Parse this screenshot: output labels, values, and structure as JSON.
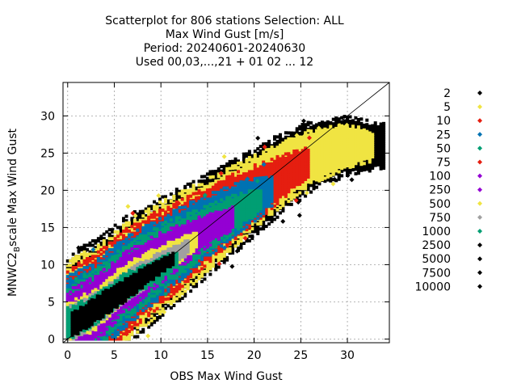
{
  "chart_data": {
    "type": "scatter",
    "title_lines": [
      "Scatterplot for  806 stations Selection: ALL",
      "Max Wind Gust [m/s]",
      "Period: 20240601-20240630",
      "Used 00,03,...,21 + 01 02 ... 12"
    ],
    "xlabel": "OBS Max Wind Gust",
    "ylabel_main": "MNWC2",
    "ylabel_sub": "B",
    "ylabel_tail": "scale Max Wind Gust",
    "xlim": [
      -0.5,
      34.5
    ],
    "ylim": [
      -0.5,
      34.5
    ],
    "xticks": [
      0,
      5,
      10,
      15,
      20,
      25,
      30
    ],
    "yticks": [
      0,
      5,
      10,
      15,
      20,
      25,
      30
    ],
    "grid": true,
    "legend_position": "right",
    "diagonal_line": true,
    "density_levels": [
      {
        "label": "2",
        "color": "#000000"
      },
      {
        "label": "5",
        "color": "#f0e442"
      },
      {
        "label": "10",
        "color": "#e51e10"
      },
      {
        "label": "25",
        "color": "#0072b2"
      },
      {
        "label": "50",
        "color": "#009e73"
      },
      {
        "label": "75",
        "color": "#e51e10"
      },
      {
        "label": "100",
        "color": "#9400d3"
      },
      {
        "label": "250",
        "color": "#9400d3"
      },
      {
        "label": "500",
        "color": "#f0e442"
      },
      {
        "label": "750",
        "color": "#a0a0a0"
      },
      {
        "label": "1000",
        "color": "#009e73"
      },
      {
        "label": "2500",
        "color": "#000000"
      },
      {
        "label": "5000",
        "color": "#000000"
      },
      {
        "label": "7500",
        "color": "#000000"
      },
      {
        "label": "10000",
        "color": "#000000"
      }
    ],
    "density_bands": [
      {
        "level": "2",
        "color": "#000000",
        "ridge": [
          [
            0,
            1.5
          ],
          [
            3,
            4
          ],
          [
            6,
            7.5
          ],
          [
            10,
            11
          ],
          [
            14,
            14.5
          ],
          [
            18,
            18
          ],
          [
            22,
            21.5
          ],
          [
            26,
            24.5
          ],
          [
            30,
            26
          ],
          [
            34,
            26
          ]
        ],
        "halfwidth": [
          [
            0,
            10
          ],
          [
            10,
            8
          ],
          [
            20,
            6
          ],
          [
            30,
            4
          ],
          [
            34,
            3
          ]
        ],
        "scatter": 40
      },
      {
        "level": "5",
        "color": "#f0e442",
        "ridge": [
          [
            0,
            1.5
          ],
          [
            3,
            4
          ],
          [
            6,
            7.5
          ],
          [
            10,
            11
          ],
          [
            14,
            14.5
          ],
          [
            18,
            18
          ],
          [
            22,
            21.5
          ],
          [
            26,
            24.5
          ],
          [
            30,
            26
          ],
          [
            33,
            26
          ]
        ],
        "halfwidth": [
          [
            0,
            9
          ],
          [
            10,
            7.5
          ],
          [
            20,
            5
          ],
          [
            30,
            3
          ],
          [
            33,
            2
          ]
        ],
        "scatter": 30
      },
      {
        "level": "10",
        "color": "#e51e10",
        "ridge": [
          [
            0,
            1.5
          ],
          [
            3,
            4
          ],
          [
            6,
            7.5
          ],
          [
            10,
            11
          ],
          [
            14,
            14.5
          ],
          [
            18,
            18
          ],
          [
            22,
            21
          ],
          [
            26,
            24
          ]
        ],
        "halfwidth": [
          [
            0,
            8
          ],
          [
            10,
            6.5
          ],
          [
            20,
            4
          ],
          [
            26,
            2
          ]
        ],
        "scatter": 20
      },
      {
        "level": "25",
        "color": "#0072b2",
        "ridge": [
          [
            0,
            1.5
          ],
          [
            3,
            4
          ],
          [
            6,
            7.5
          ],
          [
            10,
            11
          ],
          [
            14,
            14.5
          ],
          [
            18,
            17.5
          ],
          [
            22,
            20
          ]
        ],
        "halfwidth": [
          [
            0,
            7
          ],
          [
            10,
            5.5
          ],
          [
            20,
            3
          ],
          [
            22,
            2
          ]
        ],
        "scatter": 10
      },
      {
        "level": "50",
        "color": "#009e73",
        "ridge": [
          [
            0,
            1.5
          ],
          [
            3,
            4
          ],
          [
            6,
            7.5
          ],
          [
            10,
            11
          ],
          [
            14,
            14
          ],
          [
            18,
            17
          ],
          [
            21,
            19
          ]
        ],
        "halfwidth": [
          [
            0,
            6
          ],
          [
            10,
            4.5
          ],
          [
            18,
            2.5
          ],
          [
            21,
            1.5
          ]
        ],
        "scatter": 5
      },
      {
        "level": "100",
        "color": "#9400d3",
        "ridge": [
          [
            0,
            1.5
          ],
          [
            3,
            4
          ],
          [
            6,
            7.5
          ],
          [
            10,
            11
          ],
          [
            14,
            14
          ],
          [
            18,
            16.5
          ]
        ],
        "halfwidth": [
          [
            0,
            5
          ],
          [
            10,
            3.5
          ],
          [
            18,
            1.5
          ]
        ],
        "scatter": 0
      },
      {
        "level": "500",
        "color": "#f0e442",
        "ridge": [
          [
            0,
            2
          ],
          [
            3,
            4
          ],
          [
            6,
            7.5
          ],
          [
            10,
            10.5
          ],
          [
            14,
            13.5
          ]
        ],
        "halfwidth": [
          [
            0,
            3
          ],
          [
            10,
            2.2
          ],
          [
            14,
            1.2
          ]
        ],
        "scatter": 0
      },
      {
        "level": "750",
        "color": "#a0a0a0",
        "ridge": [
          [
            0,
            2
          ],
          [
            3,
            4
          ],
          [
            6,
            7
          ],
          [
            10,
            10
          ],
          [
            13,
            12.5
          ]
        ],
        "halfwidth": [
          [
            0,
            2.5
          ],
          [
            10,
            1.8
          ],
          [
            13,
            1
          ]
        ],
        "scatter": 0
      },
      {
        "level": "1000",
        "color": "#009e73",
        "ridge": [
          [
            0,
            2
          ],
          [
            3,
            4
          ],
          [
            6,
            7
          ],
          [
            10,
            9.5
          ],
          [
            12,
            11
          ]
        ],
        "halfwidth": [
          [
            0,
            2.2
          ],
          [
            10,
            1.6
          ],
          [
            12,
            1
          ]
        ],
        "scatter": 0
      },
      {
        "level": "2500",
        "color": "#000000",
        "ridge": [
          [
            0.5,
            2
          ],
          [
            3,
            4
          ],
          [
            6,
            6.5
          ],
          [
            9,
            9
          ],
          [
            11.5,
            11
          ]
        ],
        "halfwidth": [
          [
            0.5,
            1.8
          ],
          [
            6,
            1.6
          ],
          [
            11.5,
            0.8
          ]
        ],
        "scatter": 0
      }
    ]
  }
}
